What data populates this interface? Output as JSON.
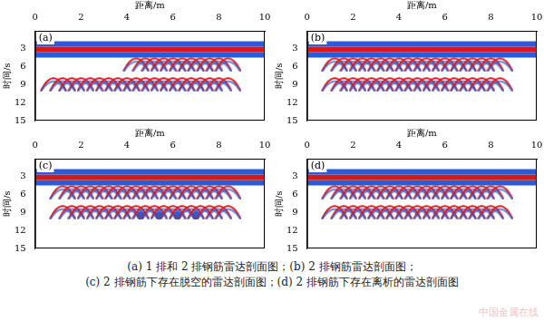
{
  "chart_data": [
    {
      "type": "scatter",
      "label": "(a)",
      "x_label": "距离/m",
      "y_label": "时间/s",
      "xlim": [
        0,
        10
      ],
      "xticks": [
        0,
        2,
        4,
        6,
        8,
        10
      ],
      "ylim": [
        0,
        15
      ],
      "yticks": [
        3,
        6,
        9,
        12,
        15
      ],
      "grid": false,
      "series": [
        {
          "type": "line",
          "color": "#2b5cd6",
          "x": [
            0,
            10
          ],
          "values": [
            2.2,
            2.2
          ]
        },
        {
          "type": "line",
          "color": "#d7191c",
          "x": [
            0,
            10
          ],
          "values": [
            3.1,
            3.1
          ]
        },
        {
          "type": "line",
          "color": "#2b5cd6",
          "x": [
            0,
            10
          ],
          "values": [
            4.0,
            4.0
          ]
        },
        {
          "type": "scatter",
          "marker": "arch",
          "color": "#d7191c",
          "x": [
            4.4,
            4.8,
            5.2,
            5.6,
            6.0,
            6.4,
            6.8,
            7.2,
            7.6,
            8.0,
            8.4
          ],
          "values": [
            4.6,
            4.6,
            4.6,
            4.6,
            4.6,
            4.6,
            4.6,
            4.6,
            4.6,
            4.6,
            4.6
          ]
        },
        {
          "type": "scatter",
          "marker": "arch",
          "color": "#d7191c",
          "x": [
            0.8,
            1.2,
            1.6,
            2.0,
            2.4,
            2.8,
            3.2,
            3.6,
            4.0,
            4.4,
            4.8,
            5.2,
            5.6,
            6.0,
            6.4,
            6.8,
            7.2,
            7.6,
            8.0,
            8.4
          ],
          "values": [
            7.9,
            7.9,
            7.9,
            7.9,
            7.9,
            7.9,
            7.9,
            7.9,
            7.9,
            7.9,
            7.9,
            7.9,
            7.9,
            7.9,
            7.9,
            7.9,
            7.9,
            7.9,
            7.9,
            7.9
          ]
        }
      ]
    },
    {
      "type": "scatter",
      "label": "(b)",
      "x_label": "距离/m",
      "y_label": "时间/s",
      "xlim": [
        0,
        10
      ],
      "xticks": [
        0,
        2,
        4,
        6,
        8,
        10
      ],
      "ylim": [
        0,
        15
      ],
      "yticks": [
        3,
        6,
        9,
        12,
        15
      ],
      "grid": false,
      "series": [
        {
          "type": "line",
          "color": "#2b5cd6",
          "x": [
            0,
            10
          ],
          "values": [
            2.2,
            2.2
          ]
        },
        {
          "type": "line",
          "color": "#d7191c",
          "x": [
            0,
            10
          ],
          "values": [
            3.1,
            3.1
          ]
        },
        {
          "type": "line",
          "color": "#2b5cd6",
          "x": [
            0,
            10
          ],
          "values": [
            4.0,
            4.0
          ]
        },
        {
          "type": "scatter",
          "marker": "arch",
          "color": "#d7191c",
          "x": [
            1.2,
            1.6,
            2.0,
            2.4,
            2.8,
            3.2,
            3.6,
            4.0,
            4.4,
            4.8,
            5.2,
            5.6,
            6.0,
            6.4,
            6.8,
            7.2,
            7.6,
            8.0,
            8.4
          ],
          "values": [
            4.6,
            4.6,
            4.6,
            4.6,
            4.6,
            4.6,
            4.6,
            4.6,
            4.6,
            4.6,
            4.6,
            4.6,
            4.6,
            4.6,
            4.6,
            4.6,
            4.6,
            4.6,
            4.6
          ]
        },
        {
          "type": "scatter",
          "marker": "arch",
          "color": "#d7191c",
          "x": [
            1.2,
            1.6,
            2.0,
            2.4,
            2.8,
            3.2,
            3.6,
            4.0,
            4.4,
            4.8,
            5.2,
            5.6,
            6.0,
            6.4,
            6.8,
            7.2,
            7.6,
            8.0,
            8.4
          ],
          "values": [
            7.9,
            7.9,
            7.9,
            7.9,
            7.9,
            7.9,
            7.9,
            7.9,
            7.9,
            7.9,
            7.9,
            7.9,
            7.9,
            7.9,
            7.9,
            7.9,
            7.9,
            7.9,
            7.9
          ]
        }
      ]
    },
    {
      "type": "scatter",
      "label": "(c)",
      "x_label": "距离/m",
      "y_label": "时间/s",
      "xlim": [
        0,
        10
      ],
      "xticks": [
        0,
        2,
        4,
        6,
        8,
        10
      ],
      "ylim": [
        0,
        15
      ],
      "yticks": [
        3,
        6,
        9,
        12,
        15
      ],
      "grid": false,
      "series": [
        {
          "type": "line",
          "color": "#2b5cd6",
          "x": [
            0,
            10
          ],
          "values": [
            2.2,
            2.2
          ]
        },
        {
          "type": "line",
          "color": "#d7191c",
          "x": [
            0,
            10
          ],
          "values": [
            3.1,
            3.1
          ]
        },
        {
          "type": "line",
          "color": "#2b5cd6",
          "x": [
            0,
            10
          ],
          "values": [
            4.0,
            4.0
          ]
        },
        {
          "type": "scatter",
          "marker": "arch",
          "color": "#d7191c",
          "x": [
            1.2,
            1.6,
            2.0,
            2.4,
            2.8,
            3.2,
            3.6,
            4.0,
            4.4,
            4.8,
            5.2,
            5.6,
            6.0,
            6.4,
            6.8,
            7.2,
            7.6,
            8.0,
            8.4
          ],
          "values": [
            4.6,
            4.6,
            4.6,
            4.6,
            4.6,
            4.6,
            4.6,
            4.6,
            4.6,
            4.6,
            4.6,
            4.6,
            4.6,
            4.6,
            4.6,
            4.6,
            4.6,
            4.6,
            4.6
          ]
        },
        {
          "type": "scatter",
          "marker": "arch",
          "color": "#d7191c",
          "x": [
            1.2,
            1.6,
            2.0,
            2.4,
            2.8,
            3.2,
            3.6,
            4.0,
            4.4,
            4.8,
            5.2,
            5.6,
            6.0,
            6.4,
            6.8,
            7.2,
            7.6,
            8.0,
            8.4
          ],
          "values": [
            7.9,
            7.9,
            7.9,
            7.9,
            7.9,
            7.9,
            7.9,
            7.9,
            7.9,
            7.9,
            7.9,
            7.9,
            7.9,
            7.9,
            7.9,
            7.9,
            7.9,
            7.9,
            7.9
          ]
        },
        {
          "type": "scatter",
          "marker": "circle",
          "color": "#2b5cd6",
          "x": [
            4.6,
            5.4,
            6.2,
            7.0
          ],
          "values": [
            9.5,
            9.5,
            9.5,
            9.5
          ]
        }
      ]
    },
    {
      "type": "scatter",
      "label": "(d)",
      "x_label": "距离/m",
      "y_label": "时间/s",
      "xlim": [
        0,
        10
      ],
      "xticks": [
        0,
        2,
        4,
        6,
        8,
        10
      ],
      "ylim": [
        0,
        15
      ],
      "yticks": [
        3,
        6,
        9,
        12,
        15
      ],
      "grid": false,
      "series": [
        {
          "type": "line",
          "color": "#2b5cd6",
          "x": [
            0,
            10
          ],
          "values": [
            2.2,
            2.2
          ]
        },
        {
          "type": "line",
          "color": "#d7191c",
          "x": [
            0,
            10
          ],
          "values": [
            3.1,
            3.1
          ]
        },
        {
          "type": "line",
          "color": "#2b5cd6",
          "x": [
            0,
            10
          ],
          "values": [
            4.0,
            4.0
          ]
        },
        {
          "type": "scatter",
          "marker": "arch",
          "color": "#d7191c",
          "x": [
            1.2,
            1.6,
            2.0,
            2.4,
            2.8,
            3.2,
            3.6,
            4.0,
            4.4,
            4.8,
            5.2,
            5.6,
            6.0,
            6.4,
            6.8,
            7.2,
            7.6,
            8.0,
            8.4
          ],
          "values": [
            4.6,
            4.6,
            4.6,
            4.6,
            4.6,
            4.6,
            4.6,
            4.6,
            4.6,
            4.6,
            4.6,
            4.6,
            4.6,
            4.6,
            4.6,
            4.6,
            4.6,
            4.6,
            4.6
          ]
        },
        {
          "type": "scatter",
          "marker": "arch",
          "color": "#d7191c",
          "x": [
            1.2,
            1.6,
            2.0,
            2.4,
            2.8,
            3.2,
            3.6,
            4.0,
            4.4,
            4.8,
            5.2,
            5.6,
            6.0,
            6.4,
            6.8,
            7.2,
            7.6,
            8.0,
            8.4
          ],
          "values": [
            7.9,
            7.9,
            7.9,
            7.9,
            7.9,
            7.9,
            7.9,
            7.9,
            7.9,
            7.9,
            7.9,
            7.9,
            7.9,
            7.9,
            7.9,
            7.9,
            7.9,
            7.9,
            7.9
          ]
        }
      ]
    }
  ],
  "caption": [
    "(a) 1 排和 2 排钢筋雷达剖面图；(b) 2 排钢筋雷达剖面图；",
    "(c) 2 排钢筋下存在脱空的雷达剖面图；(d) 2 排钢筋下存在离析的雷达剖面图"
  ],
  "watermark": "中国金属在线"
}
